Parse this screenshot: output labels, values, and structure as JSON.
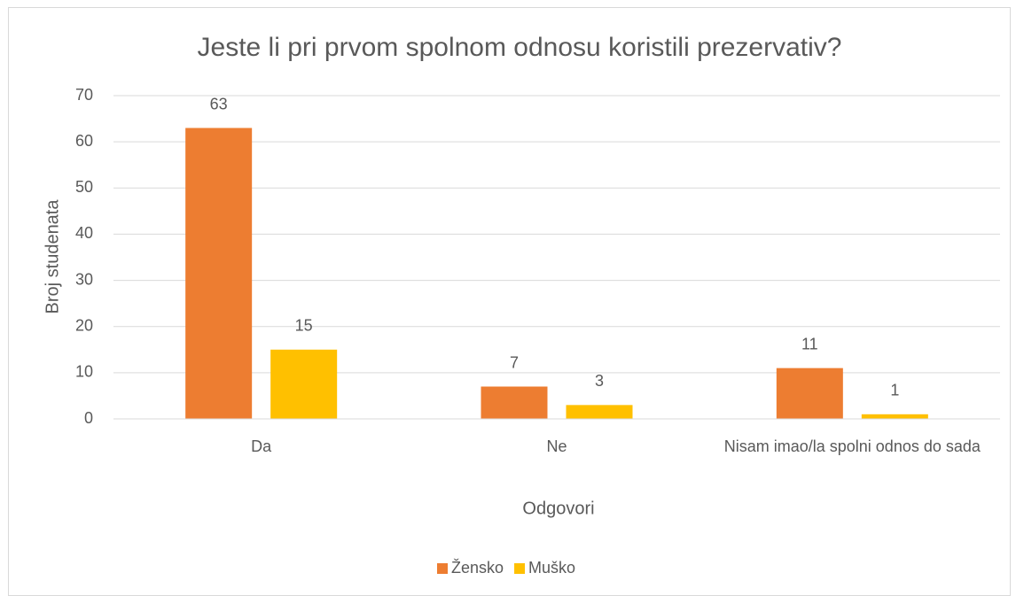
{
  "chart_data": {
    "type": "bar",
    "title": "Jeste li pri prvom spolnom odnosu koristili prezervativ?",
    "x_label": "Odgovori",
    "y_label": "Broj studenata",
    "categories": [
      "Da",
      "Ne",
      "Nisam imao/la spolni odnos do sada"
    ],
    "series": [
      {
        "name": "Žensko",
        "color": "#ED7D31",
        "values": [
          63,
          7,
          11
        ]
      },
      {
        "name": "Muško",
        "color": "#FFC000",
        "values": [
          15,
          3,
          1
        ]
      }
    ],
    "ylim": [
      0,
      70
    ],
    "yticks": [
      0,
      10,
      20,
      30,
      40,
      50,
      60,
      70
    ],
    "grid": true,
    "legend": "bottom"
  }
}
